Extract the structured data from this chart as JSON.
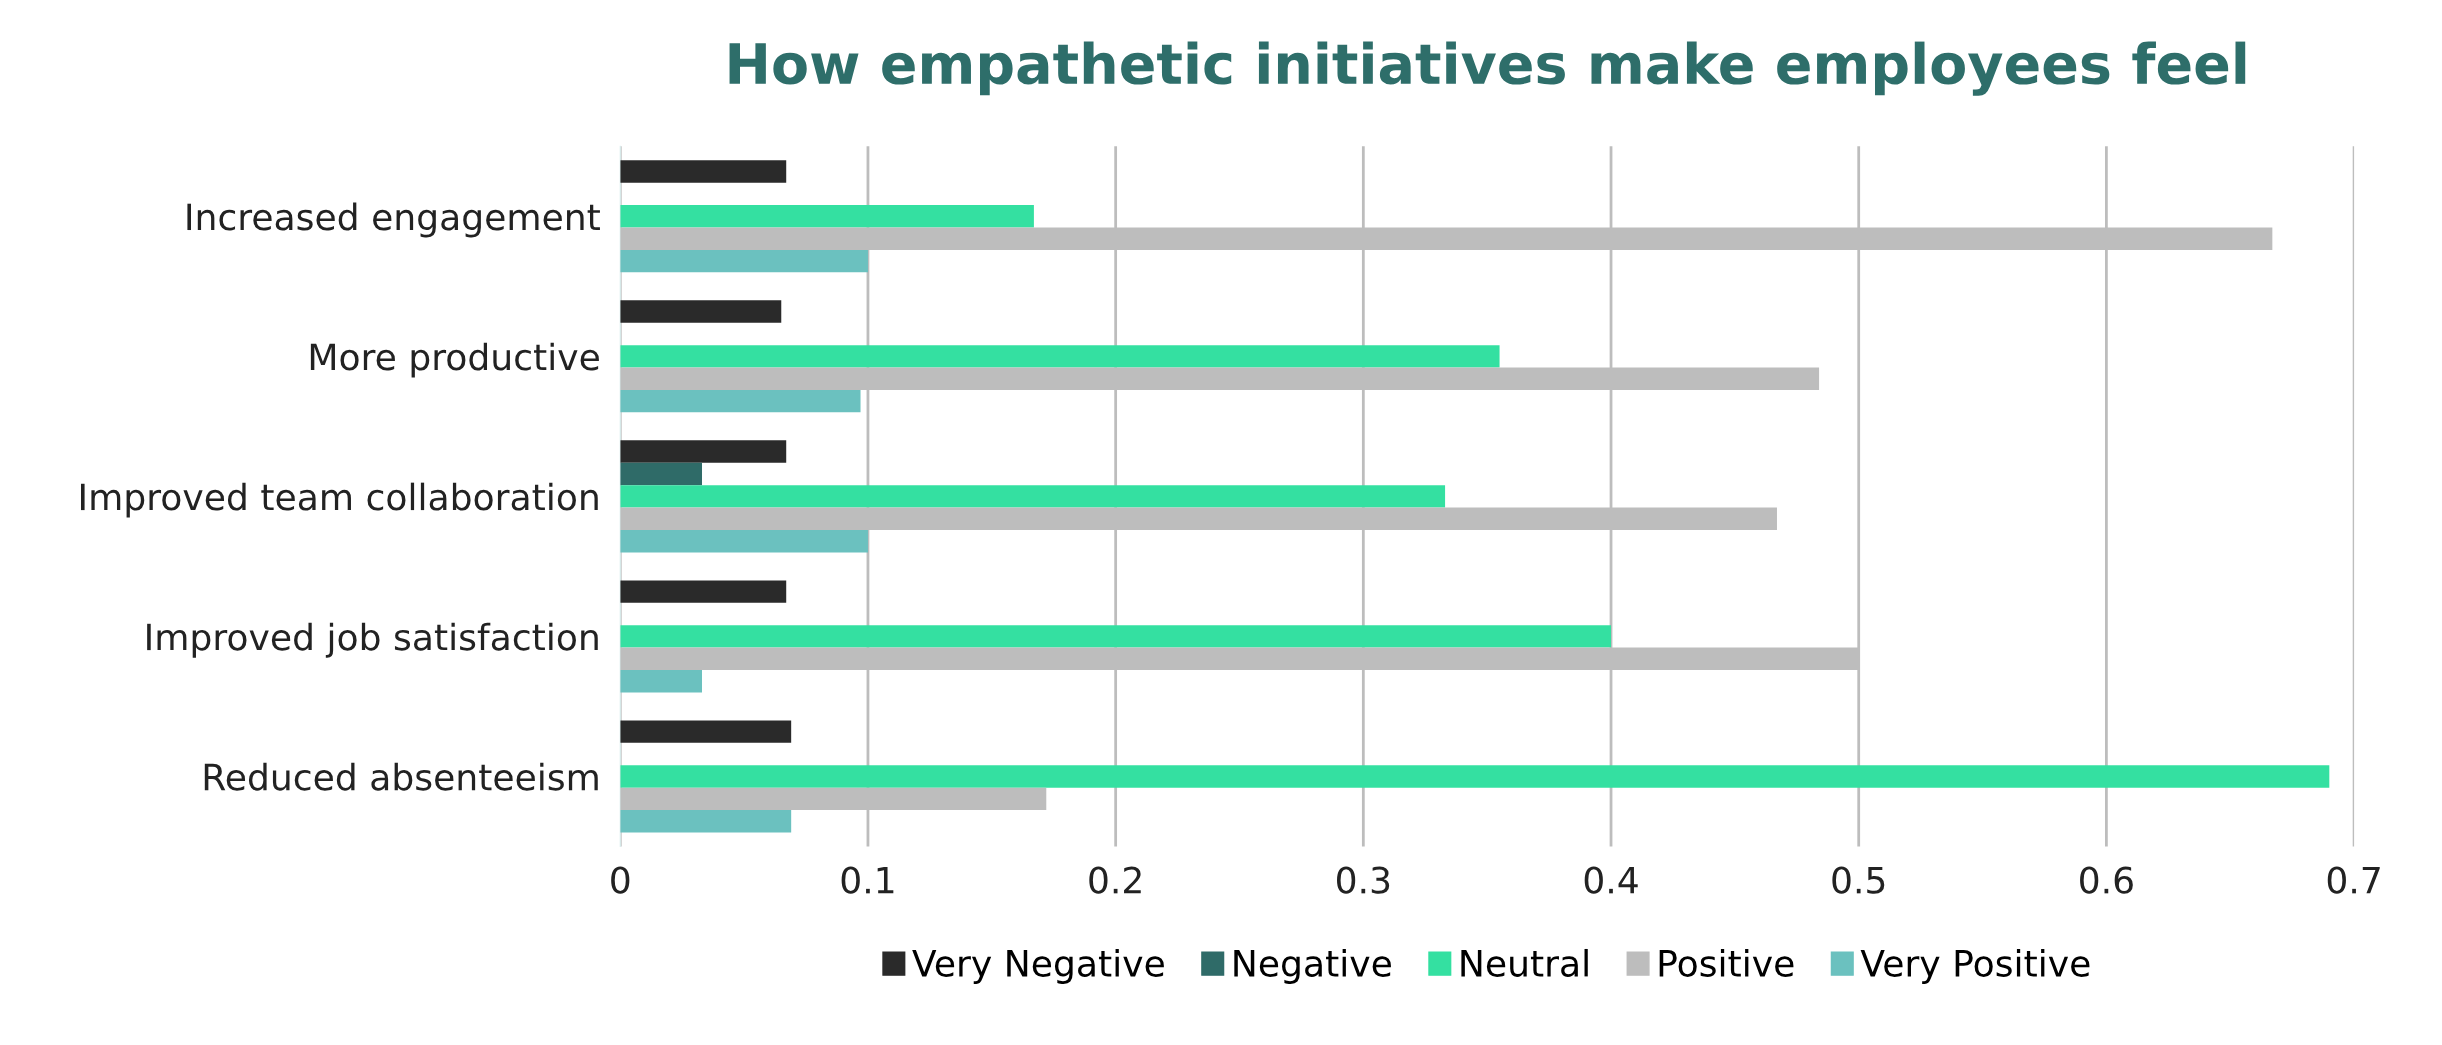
{
  "chart_data": {
    "type": "bar",
    "orientation": "horizontal",
    "title": "How empathetic initiatives make employees feel",
    "categories": [
      "Increased engagement",
      "More productive",
      "Improved team collaboration",
      "Improved job satisfaction",
      "Reduced absenteeism"
    ],
    "series": [
      {
        "name": "Very Negative",
        "color": "#2a2a2a",
        "values": [
          0.067,
          0.065,
          0.067,
          0.067,
          0.069
        ]
      },
      {
        "name": "Negative",
        "color": "#2f6b68",
        "values": [
          0,
          0,
          0.033,
          0,
          0
        ]
      },
      {
        "name": "Neutral",
        "color": "#34e0a1",
        "values": [
          0.167,
          0.355,
          0.333,
          0.4,
          0.69
        ]
      },
      {
        "name": "Positive",
        "color": "#bdbdbd",
        "values": [
          0.667,
          0.484,
          0.467,
          0.5,
          0.172
        ]
      },
      {
        "name": "Very Positive",
        "color": "#6bc1bf",
        "values": [
          0.1,
          0.097,
          0.1,
          0.033,
          0.069
        ]
      }
    ],
    "xlim": [
      0,
      0.7
    ],
    "xticks": [
      0,
      0.1,
      0.2,
      0.3,
      0.4,
      0.5,
      0.6,
      0.7
    ],
    "grid": "x",
    "legend": "bottom"
  }
}
